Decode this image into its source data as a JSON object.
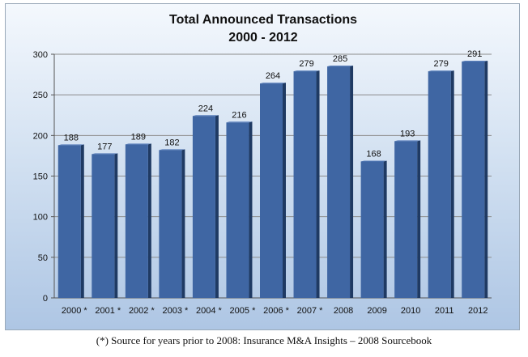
{
  "chart_data": {
    "type": "bar",
    "title": "Total Announced Transactions",
    "subtitle": "2000 - 2012",
    "categories": [
      "2000 *",
      "2001 *",
      "2002 *",
      "2003 *",
      "2004 *",
      "2005 *",
      "2006 *",
      "2007 *",
      "2008",
      "2009",
      "2010",
      "2011",
      "2012"
    ],
    "values": [
      188,
      177,
      189,
      182,
      224,
      216,
      264,
      279,
      285,
      168,
      193,
      279,
      291
    ],
    "ylim": [
      0,
      300
    ],
    "yticks": [
      0,
      50,
      100,
      150,
      200,
      250,
      300
    ],
    "xlabel": "",
    "ylabel": "",
    "grid": true,
    "bar_color": "#3f66a3",
    "bar_side_color": "#1f3a63"
  },
  "footnote": "(*)  Source for years prior to 2008:  Insurance M&A Insights – 2008 Sourcebook"
}
